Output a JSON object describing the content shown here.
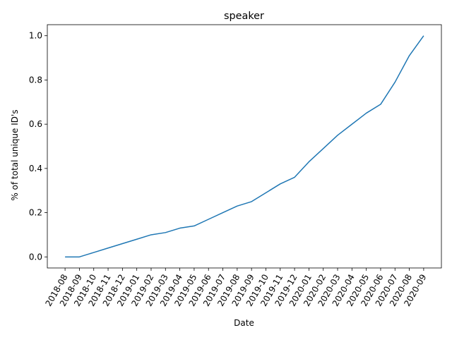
{
  "chart_data": {
    "type": "line",
    "title": "speaker",
    "xlabel": "Date",
    "ylabel": "% of total unique ID's",
    "x": [
      "2018-08",
      "2018-09",
      "2018-10",
      "2018-11",
      "2018-12",
      "2019-01",
      "2019-02",
      "2019-03",
      "2019-04",
      "2019-05",
      "2019-06",
      "2019-07",
      "2019-08",
      "2019-09",
      "2019-10",
      "2019-11",
      "2019-12",
      "2020-01",
      "2020-02",
      "2020-03",
      "2020-04",
      "2020-05",
      "2020-06",
      "2020-07",
      "2020-08",
      "2020-09"
    ],
    "series": [
      {
        "values": [
          0.0,
          0.0,
          0.02,
          0.04,
          0.06,
          0.08,
          0.1,
          0.11,
          0.13,
          0.14,
          0.17,
          0.2,
          0.23,
          0.25,
          0.29,
          0.33,
          0.36,
          0.43,
          0.49,
          0.55,
          0.6,
          0.65,
          0.69,
          0.79,
          0.91,
          1.0
        ],
        "color": "#1f77b4"
      }
    ],
    "yticks": [
      "0.0",
      "0.2",
      "0.4",
      "0.6",
      "0.8",
      "1.0"
    ],
    "ylim": [
      -0.05,
      1.05
    ],
    "grid": false,
    "legend": "none"
  }
}
